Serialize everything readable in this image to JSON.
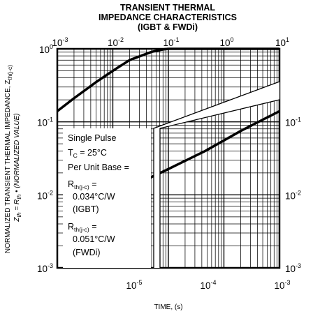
{
  "chart_data": {
    "type": "line",
    "title": [
      "TRANSIENT THERMAL",
      "IMPEDANCE CHARACTERISTICS",
      "(IGBT & FWDi)"
    ],
    "xlabel": "TIME, (s)",
    "ylabel": {
      "line1": "NORMALIZED TRANSIENT THERMAL IMPEDANCE, Z",
      "line1_sub": "th(j-c)",
      "line2_a": "Z",
      "line2_a_sub": "th",
      "line2_b": " = R",
      "line2_b_sub": "th",
      "line2_c": " • (NORMALIZED VALUE)"
    },
    "scale": "log-log",
    "grid": true,
    "top_axis": {
      "range": [
        0.001,
        10
      ],
      "ticks": [
        {
          "base": "10",
          "exp": "-3"
        },
        {
          "base": "10",
          "exp": "-2"
        },
        {
          "base": "10",
          "exp": "-1"
        },
        {
          "base": "10",
          "exp": "0"
        },
        {
          "base": "10",
          "exp": "1"
        }
      ]
    },
    "bottom_axis": {
      "range": [
        1e-06,
        0.001
      ],
      "ticks": [
        {
          "base": "10",
          "exp": "-5"
        },
        {
          "base": "10",
          "exp": "-4"
        },
        {
          "base": "10",
          "exp": "-3"
        }
      ]
    },
    "y_axis": {
      "range": [
        0.001,
        1
      ],
      "left_ticks": [
        {
          "base": "10",
          "exp": "0"
        },
        {
          "base": "10",
          "exp": "-1"
        },
        {
          "base": "10",
          "exp": "-2"
        },
        {
          "base": "10",
          "exp": "-3"
        }
      ],
      "right_ticks": [
        {
          "base": "10",
          "exp": "-1"
        },
        {
          "base": "10",
          "exp": "-2"
        },
        {
          "base": "10",
          "exp": "-3"
        }
      ]
    },
    "series": [
      {
        "axis": "top",
        "x": [
          0.001,
          0.002,
          0.005,
          0.01,
          0.02,
          0.05,
          0.08,
          0.1,
          1,
          10
        ],
        "y": [
          0.14,
          0.21,
          0.35,
          0.5,
          0.7,
          0.91,
          0.98,
          1,
          1,
          1
        ]
      },
      {
        "axis": "bottom",
        "x": [
          1e-05,
          3e-05,
          0.0001,
          0.0003,
          0.001
        ],
        "y": [
          0.013,
          0.022,
          0.04,
          0.075,
          0.14
        ]
      }
    ],
    "annotation": {
      "line1": "Single Pulse",
      "line2_a": "T",
      "line2_sub": "C",
      "line2_b": " = 25°C",
      "line3": "Per Unit Base =",
      "r1_a": "R",
      "r1_sub": "th(j-c)",
      "r1_b": " =",
      "r1_val": "0.034°C/W",
      "r1_dev": "(IGBT)",
      "r2_a": "R",
      "r2_sub": "th(j-c)",
      "r2_b": " =",
      "r2_val": "0.051°C/W",
      "r2_dev": "(FWDi)"
    }
  }
}
